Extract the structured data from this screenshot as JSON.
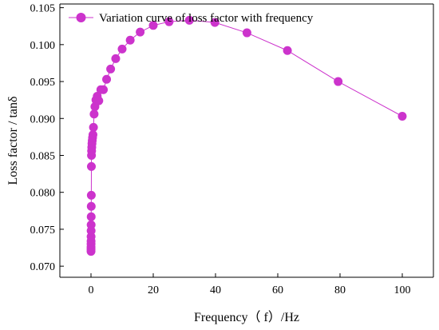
{
  "chart_data": {
    "type": "line",
    "xlabel": "Frequency（ f）/Hz",
    "ylabel": "Loss factor / tanδ",
    "xlim": [
      -10,
      110
    ],
    "ylim": [
      0.0685,
      0.1055
    ],
    "x_ticks": [
      0,
      20,
      40,
      60,
      80,
      100
    ],
    "y_ticks": [
      0.07,
      0.075,
      0.08,
      0.085,
      0.09,
      0.095,
      0.1,
      0.105
    ],
    "x_tick_labels": [
      "0",
      "20",
      "40",
      "60",
      "80",
      "100"
    ],
    "y_tick_labels": [
      "0.070",
      "0.075",
      "0.080",
      "0.085",
      "0.090",
      "0.095",
      "0.100",
      "0.105"
    ],
    "grid": false,
    "legend_position": "top-left",
    "color": "#cc33cc",
    "series": [
      {
        "name": "Variation curve of loss factor with frequency",
        "x": [
          0.01,
          0.013,
          0.016,
          0.02,
          0.025,
          0.032,
          0.04,
          0.05,
          0.063,
          0.079,
          0.1,
          0.126,
          0.158,
          0.2,
          0.251,
          0.316,
          0.398,
          0.501,
          0.631,
          0.794,
          1.0,
          1.26,
          1.58,
          2.0,
          2.51,
          3.16,
          3.98,
          5.01,
          6.31,
          7.94,
          10.0,
          12.6,
          15.8,
          20.0,
          25.1,
          31.6,
          39.8,
          50.1,
          63.1,
          79.4,
          100.0
        ],
        "y": [
          0.072,
          0.0723,
          0.0726,
          0.073,
          0.0734,
          0.074,
          0.0748,
          0.0756,
          0.0767,
          0.0781,
          0.0796,
          0.0835,
          0.085,
          0.0856,
          0.0861,
          0.0866,
          0.087,
          0.0874,
          0.0878,
          0.0888,
          0.0906,
          0.0916,
          0.0925,
          0.093,
          0.0924,
          0.0939,
          0.0939,
          0.0953,
          0.0967,
          0.0981,
          0.0994,
          0.1006,
          0.1017,
          0.1026,
          0.1031,
          0.1033,
          0.103,
          0.1016,
          0.0992,
          0.095,
          0.0903
        ]
      }
    ]
  }
}
